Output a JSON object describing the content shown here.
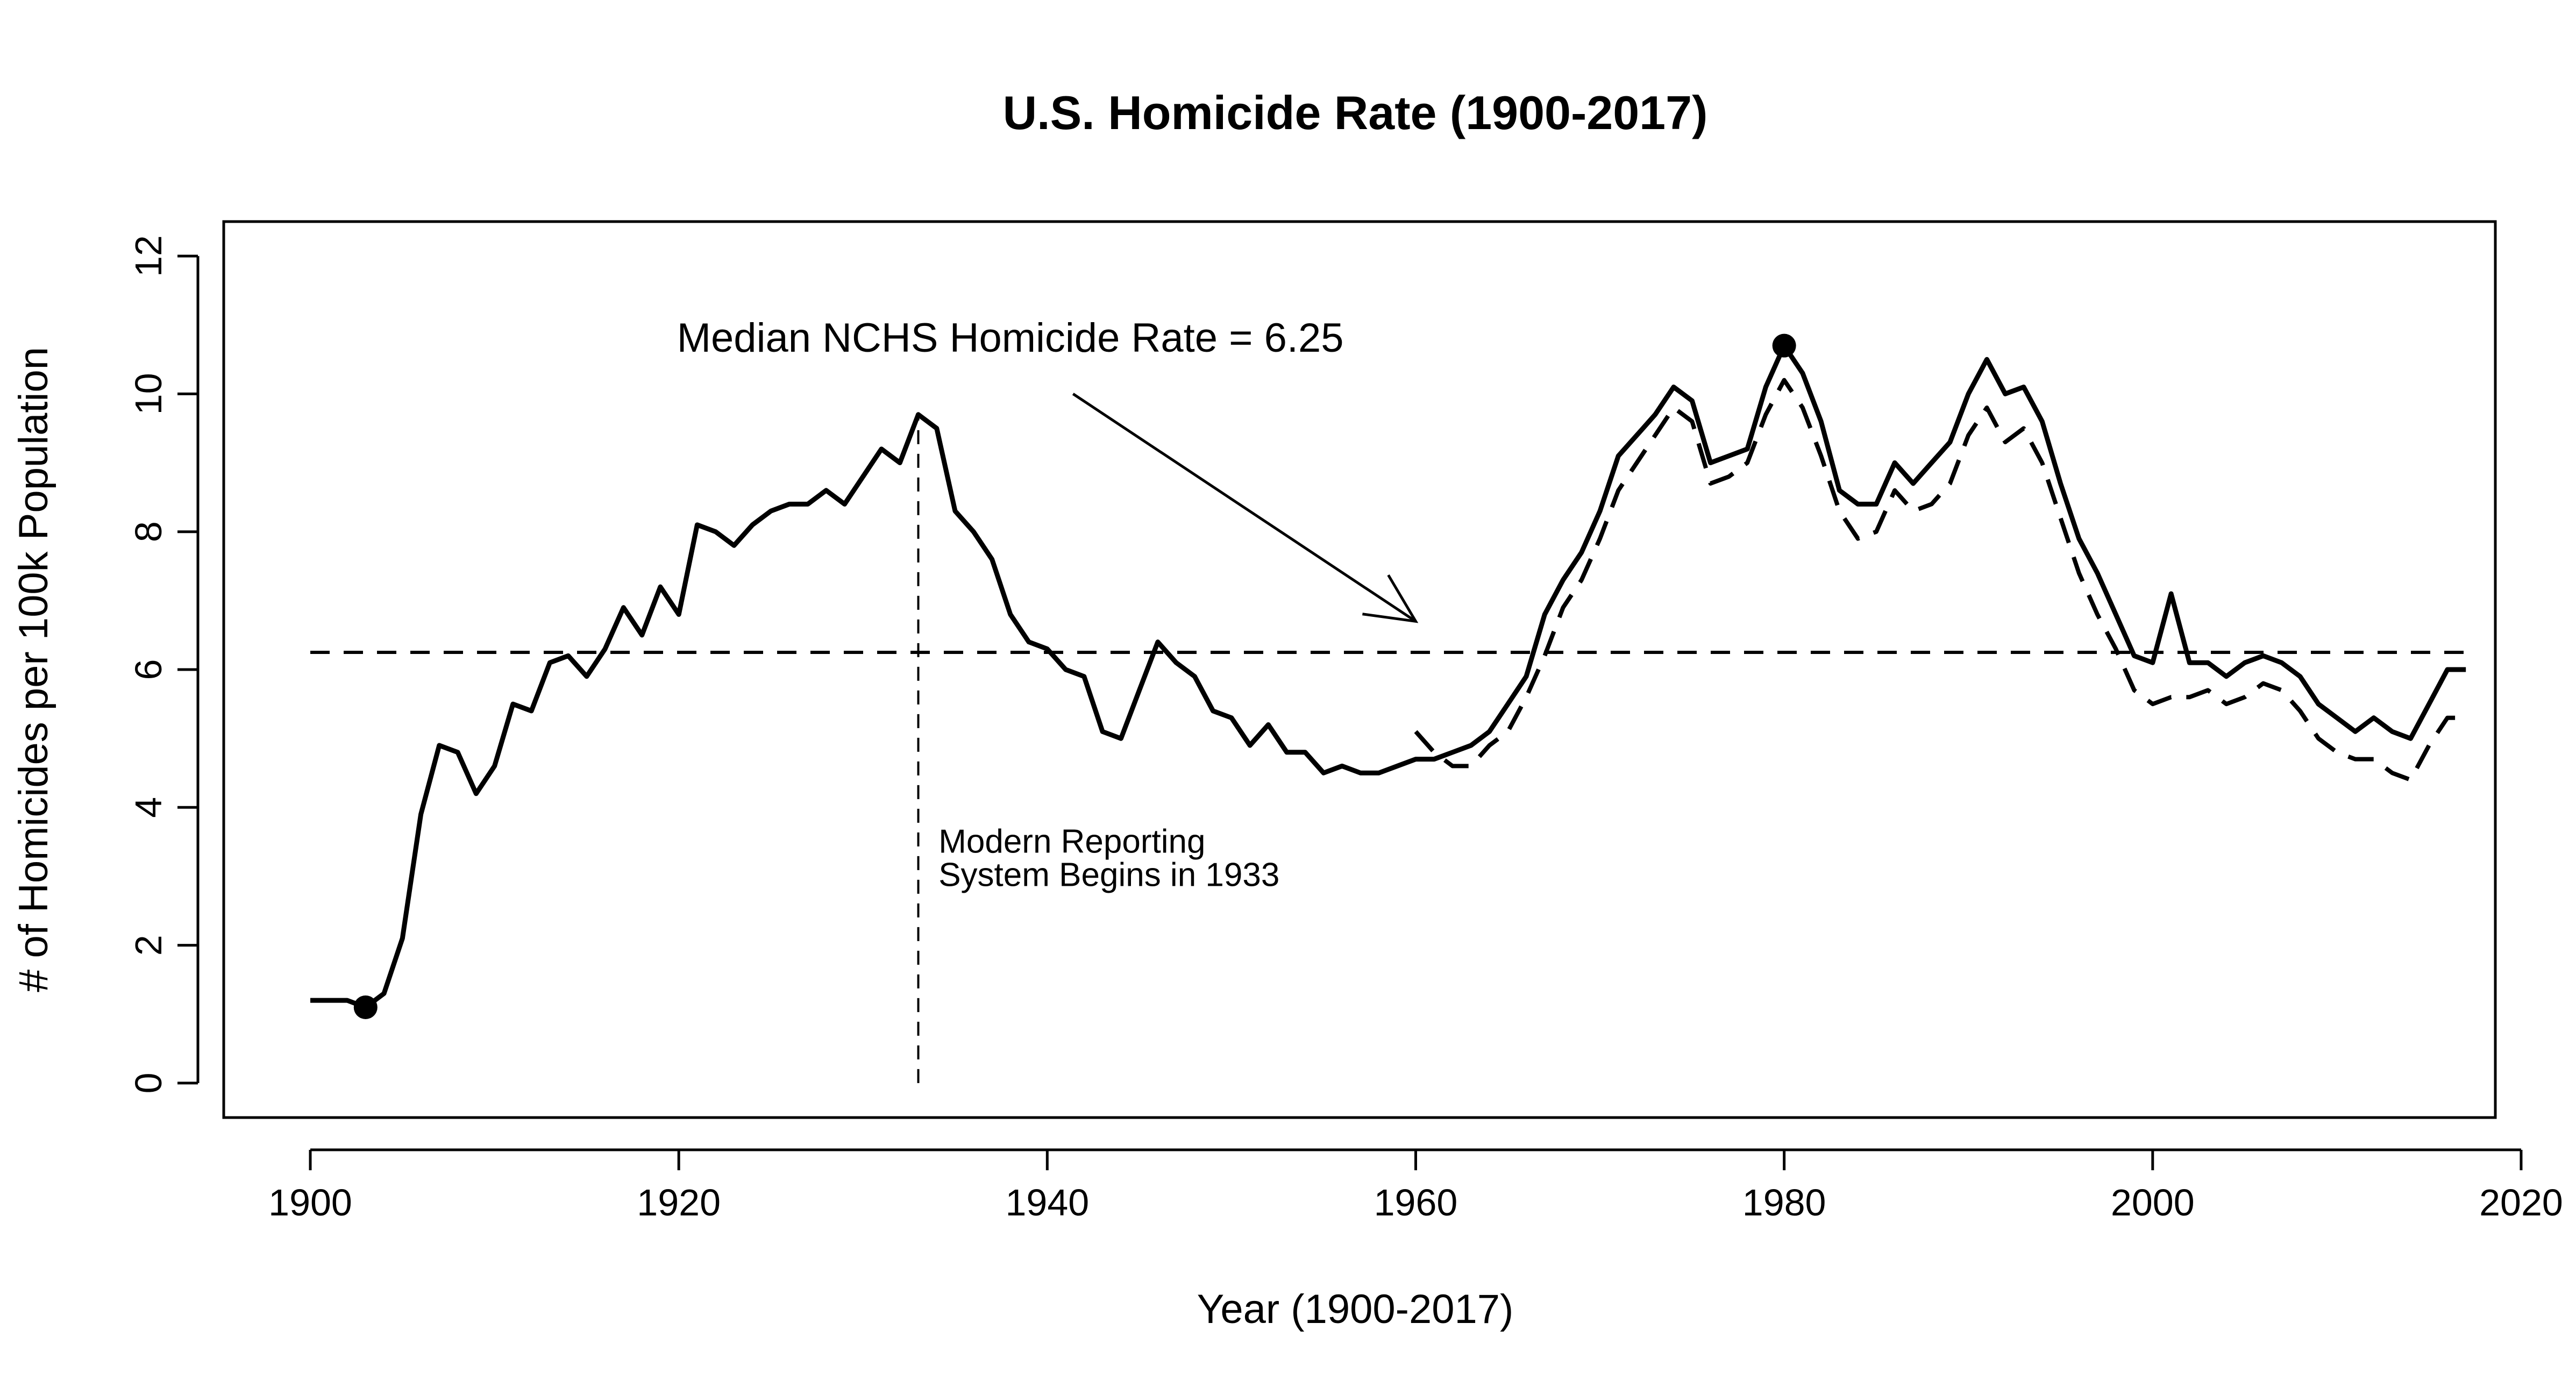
{
  "chart_data": {
    "type": "line",
    "title": "U.S. Homicide Rate (1900-2017)",
    "xlabel": "Year (1900-2017)",
    "ylabel": "# of Homicides per 100k Population",
    "xlim": [
      1895.3,
      2018.6
    ],
    "ylim": [
      -0.5,
      12.5
    ],
    "xticks": [
      1900,
      1920,
      1940,
      1960,
      1980,
      2000,
      2020
    ],
    "yticks": [
      0,
      2,
      4,
      6,
      8,
      10,
      12
    ],
    "xtick_labels": [
      "1900",
      "1920",
      "1940",
      "1960",
      "1980",
      "2000",
      "2020"
    ],
    "ytick_labels": [
      "0",
      "2",
      "4",
      "6",
      "8",
      "10",
      "12"
    ],
    "grid": false,
    "legend": "none",
    "series": [
      {
        "style": "solid",
        "x": [
          1900,
          1901,
          1902,
          1903,
          1904,
          1905,
          1906,
          1907,
          1908,
          1909,
          1910,
          1911,
          1912,
          1913,
          1914,
          1915,
          1916,
          1917,
          1918,
          1919,
          1920,
          1921,
          1922,
          1923,
          1924,
          1925,
          1926,
          1927,
          1928,
          1929,
          1930,
          1931,
          1932,
          1933,
          1934,
          1935,
          1936,
          1937,
          1938,
          1939,
          1940,
          1941,
          1942,
          1943,
          1944,
          1945,
          1946,
          1947,
          1948,
          1949,
          1950,
          1951,
          1952,
          1953,
          1954,
          1955,
          1956,
          1957,
          1958,
          1959,
          1960,
          1961,
          1962,
          1963,
          1964,
          1965,
          1966,
          1967,
          1968,
          1969,
          1970,
          1971,
          1972,
          1973,
          1974,
          1975,
          1976,
          1977,
          1978,
          1979,
          1980,
          1981,
          1982,
          1983,
          1984,
          1985,
          1986,
          1987,
          1988,
          1989,
          1990,
          1991,
          1992,
          1993,
          1994,
          1995,
          1996,
          1997,
          1998,
          1999,
          2000,
          2001,
          2002,
          2003,
          2004,
          2005,
          2006,
          2007,
          2008,
          2009,
          2010,
          2011,
          2012,
          2013,
          2014,
          2015,
          2016,
          2017
        ],
        "y": [
          1.2,
          1.2,
          1.2,
          1.1,
          1.3,
          2.1,
          3.9,
          4.9,
          4.8,
          4.2,
          4.6,
          5.5,
          5.4,
          6.1,
          6.2,
          5.9,
          6.3,
          6.9,
          6.5,
          7.2,
          6.8,
          8.1,
          8.0,
          7.8,
          8.1,
          8.3,
          8.4,
          8.4,
          8.6,
          8.4,
          8.8,
          9.2,
          9.0,
          9.7,
          9.5,
          8.3,
          8.0,
          7.6,
          6.8,
          6.4,
          6.3,
          6.0,
          5.9,
          5.1,
          5.0,
          5.7,
          6.4,
          6.1,
          5.9,
          5.4,
          5.3,
          4.9,
          5.2,
          4.8,
          4.8,
          4.5,
          4.6,
          4.5,
          4.5,
          4.6,
          4.7,
          4.7,
          4.8,
          4.9,
          5.1,
          5.5,
          5.9,
          6.8,
          7.3,
          7.7,
          8.3,
          9.1,
          9.4,
          9.7,
          10.1,
          9.9,
          9.0,
          9.1,
          9.2,
          10.1,
          10.7,
          10.3,
          9.6,
          8.6,
          8.4,
          8.4,
          9.0,
          8.7,
          9.0,
          9.3,
          10.0,
          10.5,
          10.0,
          10.1,
          9.6,
          8.7,
          7.9,
          7.4,
          6.8,
          6.2,
          6.1,
          7.1,
          6.1,
          6.1,
          5.9,
          6.1,
          6.2,
          6.1,
          5.9,
          5.5,
          5.3,
          5.1,
          5.3,
          5.1,
          5.0,
          5.5,
          6.0,
          6.0
        ]
      },
      {
        "style": "dashed",
        "x": [
          1960,
          1961,
          1962,
          1963,
          1964,
          1965,
          1966,
          1967,
          1968,
          1969,
          1970,
          1971,
          1972,
          1973,
          1974,
          1975,
          1976,
          1977,
          1978,
          1979,
          1980,
          1981,
          1982,
          1983,
          1984,
          1985,
          1986,
          1987,
          1988,
          1989,
          1990,
          1991,
          1992,
          1993,
          1994,
          1995,
          1996,
          1997,
          1998,
          1999,
          2000,
          2001,
          2002,
          2003,
          2004,
          2005,
          2006,
          2007,
          2008,
          2009,
          2010,
          2011,
          2012,
          2013,
          2014,
          2015,
          2016,
          2017
        ],
        "y": [
          5.1,
          4.8,
          4.6,
          4.6,
          4.9,
          5.1,
          5.6,
          6.2,
          6.9,
          7.3,
          7.9,
          8.6,
          9.0,
          9.4,
          9.8,
          9.6,
          8.7,
          8.8,
          9.0,
          9.7,
          10.2,
          9.8,
          9.1,
          8.3,
          7.9,
          8.0,
          8.6,
          8.3,
          8.4,
          8.7,
          9.4,
          9.8,
          9.3,
          9.5,
          9.0,
          8.2,
          7.4,
          6.8,
          6.3,
          5.7,
          5.5,
          5.6,
          5.6,
          5.7,
          5.5,
          5.6,
          5.8,
          5.7,
          5.4,
          5.0,
          4.8,
          4.7,
          4.7,
          4.5,
          4.4,
          4.9,
          5.3,
          5.3
        ]
      },
      {
        "style": "dashed-reference",
        "x": [
          1900,
          2017
        ],
        "y": [
          6.25,
          6.25
        ]
      }
    ],
    "highlighted_points": [
      {
        "x": 1903,
        "y": 1.1
      },
      {
        "x": 1980,
        "y": 10.7
      }
    ],
    "reference_vline": {
      "x": 1933,
      "y_from": 0,
      "y_to": 9.7
    },
    "annotations": [
      {
        "text": "Median NCHS Homicide Rate = 6.25",
        "x": 1919.9,
        "y": 10.8,
        "arrow_from": [
          1941.4,
          10.0
        ],
        "arrow_to": [
          1960,
          6.7
        ]
      },
      {
        "lines": [
          "Modern Reporting",
          "System Begins in 1933"
        ],
        "x": 1934.1,
        "y": 3.5
      }
    ]
  }
}
